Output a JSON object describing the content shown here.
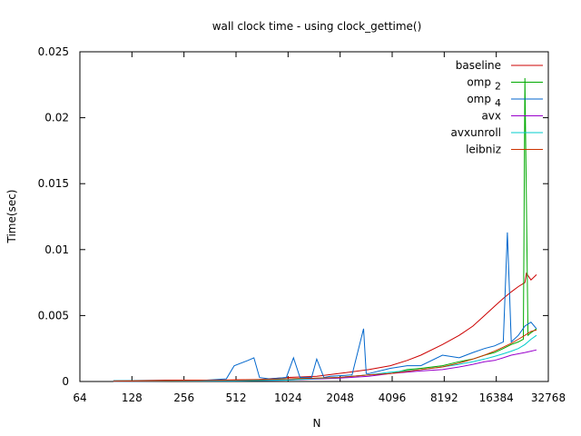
{
  "chart_data": {
    "type": "line",
    "title": "wall clock time - using clock_gettime()",
    "xlabel": "N",
    "ylabel": "Time(sec)",
    "x_scale": "log2",
    "xlim": [
      64,
      32768
    ],
    "ylim": [
      0,
      0.025
    ],
    "grid": false,
    "legend_position": "top-right",
    "x_ticks": [
      {
        "value": 64,
        "label": "64"
      },
      {
        "value": 128,
        "label": "128"
      },
      {
        "value": 256,
        "label": "256"
      },
      {
        "value": 512,
        "label": "512"
      },
      {
        "value": 1024,
        "label": "1024"
      },
      {
        "value": 2048,
        "label": "2048"
      },
      {
        "value": 4096,
        "label": "4096"
      },
      {
        "value": 8192,
        "label": "8192"
      },
      {
        "value": 16384,
        "label": "16384"
      },
      {
        "value": 32768,
        "label": "32768"
      }
    ],
    "y_ticks": [
      {
        "value": 0,
        "label": "0"
      },
      {
        "value": 0.005,
        "label": "0.005"
      },
      {
        "value": 0.01,
        "label": "0.01"
      },
      {
        "value": 0.015,
        "label": "0.015"
      },
      {
        "value": 0.02,
        "label": "0.02"
      },
      {
        "value": 0.025,
        "label": "0.025"
      }
    ],
    "series": [
      {
        "name": "baseline",
        "name_sub": "",
        "color": "#cc0000",
        "x": [
          100,
          200,
          400,
          700,
          1000,
          1500,
          2000,
          3000,
          4000,
          5000,
          6000,
          8000,
          10000,
          12000,
          14000,
          16000,
          18000,
          20000,
          22000,
          24000,
          24500,
          26000,
          28000
        ],
        "y": [
          5e-05,
          0.0001,
          0.0001,
          0.00015,
          0.0003,
          0.0004,
          0.0006,
          0.0009,
          0.0012,
          0.0016,
          0.002,
          0.0028,
          0.0035,
          0.0042,
          0.005,
          0.0057,
          0.0063,
          0.0068,
          0.0072,
          0.0075,
          0.0082,
          0.0077,
          0.0081
        ]
      },
      {
        "name": "omp",
        "name_sub": "2",
        "color": "#00aa00",
        "x": [
          100,
          300,
          600,
          1000,
          1500,
          2000,
          3000,
          4000,
          5000,
          6000,
          8000,
          10000,
          12000,
          14000,
          16000,
          18000,
          20000,
          22000,
          23500,
          24000,
          24500,
          25000,
          26000,
          28000
        ],
        "y": [
          5e-05,
          5e-05,
          0.0001,
          0.0002,
          0.00025,
          0.0003,
          0.0005,
          0.0006,
          0.0009,
          0.001,
          0.0012,
          0.0015,
          0.0017,
          0.002,
          0.0022,
          0.0025,
          0.0028,
          0.003,
          0.0032,
          0.023,
          0.0135,
          0.0035,
          0.0037,
          0.004
        ]
      },
      {
        "name": "omp",
        "name_sub": "4",
        "color": "#0066cc",
        "x": [
          100,
          300,
          450,
          500,
          600,
          650,
          700,
          800,
          1000,
          1100,
          1200,
          1400,
          1500,
          1650,
          1800,
          2400,
          2800,
          2900,
          3000,
          4000,
          5000,
          6000,
          8000,
          10000,
          12000,
          14000,
          16000,
          18000,
          19000,
          20000,
          22000,
          24000,
          26000,
          28000
        ],
        "y": [
          5e-05,
          5e-05,
          0.0002,
          0.0012,
          0.0016,
          0.0018,
          0.0003,
          0.0002,
          0.0003,
          0.0018,
          0.0003,
          0.0003,
          0.0017,
          0.0003,
          0.0004,
          0.0005,
          0.004,
          0.0006,
          0.0006,
          0.001,
          0.0012,
          0.0012,
          0.002,
          0.0018,
          0.0022,
          0.0025,
          0.0027,
          0.003,
          0.0113,
          0.003,
          0.0035,
          0.0042,
          0.0045,
          0.004
        ]
      },
      {
        "name": "avx",
        "name_sub": "",
        "color": "#9900cc",
        "x": [
          100,
          500,
          1000,
          2000,
          3000,
          4000,
          6000,
          8000,
          10000,
          12000,
          14000,
          16000,
          18000,
          20000,
          22000,
          24000,
          26000,
          28000
        ],
        "y": [
          2e-05,
          5e-05,
          0.0001,
          0.00025,
          0.0004,
          0.0006,
          0.0008,
          0.0009,
          0.0011,
          0.0013,
          0.0015,
          0.0016,
          0.0018,
          0.002,
          0.0021,
          0.0022,
          0.0023,
          0.0024
        ]
      },
      {
        "name": "avxunroll",
        "name_sub": "",
        "color": "#00cccc",
        "x": [
          100,
          500,
          1000,
          2000,
          3000,
          4000,
          6000,
          8000,
          10000,
          12000,
          14000,
          16000,
          18000,
          20000,
          22000,
          24000,
          26000,
          28000
        ],
        "y": [
          2e-05,
          5e-05,
          0.0001,
          0.0003,
          0.0005,
          0.0007,
          0.0009,
          0.0011,
          0.0013,
          0.0015,
          0.0017,
          0.0019,
          0.0021,
          0.0023,
          0.0025,
          0.0028,
          0.0032,
          0.0035
        ]
      },
      {
        "name": "leibniz",
        "name_sub": "",
        "color": "#cc3300",
        "x": [
          100,
          500,
          1000,
          2000,
          3000,
          4000,
          6000,
          8000,
          10000,
          12000,
          14000,
          16000,
          18000,
          20000,
          22000,
          24000,
          26000,
          28000
        ],
        "y": [
          2e-05,
          0.0001,
          0.0002,
          0.0003,
          0.0005,
          0.0006,
          0.0009,
          0.0011,
          0.0014,
          0.0017,
          0.002,
          0.0023,
          0.0026,
          0.0029,
          0.0032,
          0.0035,
          0.0038,
          0.0039
        ]
      }
    ]
  }
}
